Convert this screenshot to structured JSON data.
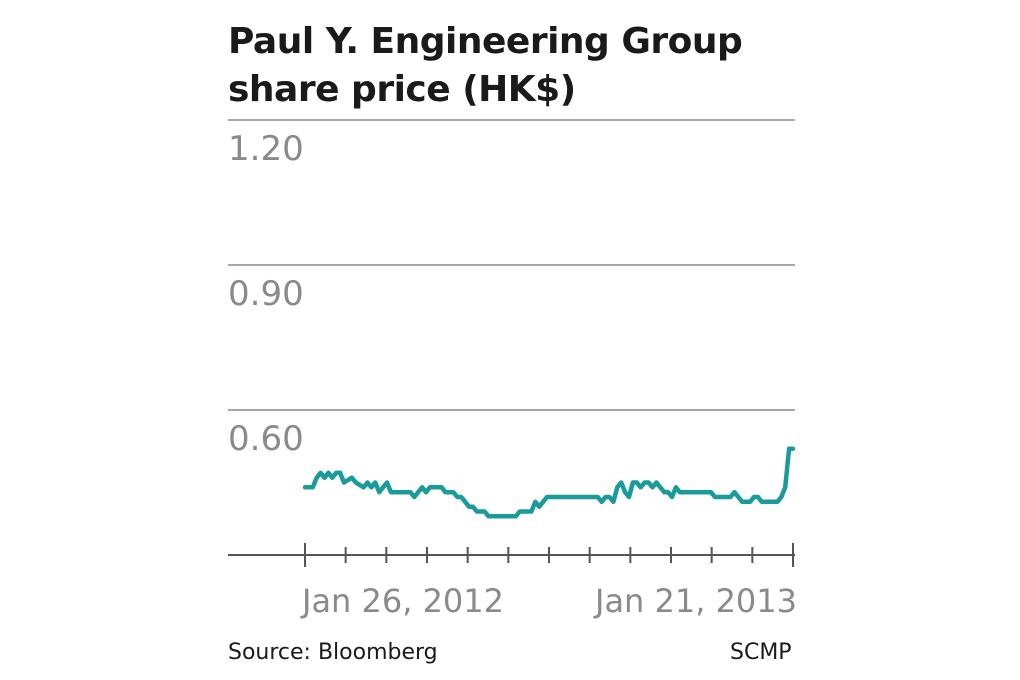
{
  "chart_data": {
    "type": "line",
    "title_line1": "Paul Y. Engineering Group",
    "title_line2": "share price (HK$)",
    "source": "Source: Bloomberg",
    "credit": "SCMP",
    "y_ticks": [
      "1.20",
      "0.90",
      "0.60"
    ],
    "y_tick_values": [
      1.2,
      0.9,
      0.6
    ],
    "ylim": [
      0.3,
      1.2
    ],
    "x_labels": [
      "Jan 26, 2012",
      "Jan 21, 2013"
    ],
    "x_label_indices": [
      0,
      250
    ],
    "x_count": 251,
    "grid": true,
    "line_color": "#1a9b9b",
    "series": [
      {
        "points": [
          [
            0,
            0.44
          ],
          [
            4,
            0.44
          ],
          [
            6,
            0.46
          ],
          [
            8,
            0.47
          ],
          [
            10,
            0.46
          ],
          [
            12,
            0.47
          ],
          [
            14,
            0.46
          ],
          [
            16,
            0.47
          ],
          [
            18,
            0.47
          ],
          [
            20,
            0.45
          ],
          [
            24,
            0.46
          ],
          [
            26,
            0.45
          ],
          [
            30,
            0.44
          ],
          [
            32,
            0.45
          ],
          [
            34,
            0.44
          ],
          [
            36,
            0.45
          ],
          [
            38,
            0.43
          ],
          [
            40,
            0.44
          ],
          [
            42,
            0.45
          ],
          [
            44,
            0.43
          ],
          [
            46,
            0.43
          ],
          [
            50,
            0.43
          ],
          [
            52,
            0.43
          ],
          [
            54,
            0.43
          ],
          [
            56,
            0.42
          ],
          [
            58,
            0.43
          ],
          [
            60,
            0.44
          ],
          [
            62,
            0.43
          ],
          [
            64,
            0.44
          ],
          [
            66,
            0.44
          ],
          [
            70,
            0.44
          ],
          [
            72,
            0.43
          ],
          [
            74,
            0.43
          ],
          [
            76,
            0.43
          ],
          [
            78,
            0.42
          ],
          [
            80,
            0.42
          ],
          [
            82,
            0.41
          ],
          [
            84,
            0.4
          ],
          [
            86,
            0.4
          ],
          [
            88,
            0.39
          ],
          [
            90,
            0.39
          ],
          [
            92,
            0.39
          ],
          [
            94,
            0.38
          ],
          [
            96,
            0.38
          ],
          [
            98,
            0.38
          ],
          [
            100,
            0.38
          ],
          [
            102,
            0.38
          ],
          [
            104,
            0.38
          ],
          [
            106,
            0.38
          ],
          [
            108,
            0.38
          ],
          [
            110,
            0.39
          ],
          [
            112,
            0.39
          ],
          [
            114,
            0.39
          ],
          [
            116,
            0.39
          ],
          [
            118,
            0.41
          ],
          [
            120,
            0.4
          ],
          [
            122,
            0.41
          ],
          [
            124,
            0.42
          ],
          [
            126,
            0.42
          ],
          [
            128,
            0.42
          ],
          [
            130,
            0.42
          ],
          [
            134,
            0.42
          ],
          [
            138,
            0.42
          ],
          [
            142,
            0.42
          ],
          [
            146,
            0.42
          ],
          [
            150,
            0.42
          ],
          [
            152,
            0.41
          ],
          [
            154,
            0.42
          ],
          [
            156,
            0.42
          ],
          [
            158,
            0.41
          ],
          [
            160,
            0.44
          ],
          [
            162,
            0.45
          ],
          [
            164,
            0.43
          ],
          [
            166,
            0.42
          ],
          [
            168,
            0.45
          ],
          [
            170,
            0.45
          ],
          [
            172,
            0.44
          ],
          [
            174,
            0.45
          ],
          [
            176,
            0.45
          ],
          [
            178,
            0.44
          ],
          [
            180,
            0.45
          ],
          [
            182,
            0.44
          ],
          [
            184,
            0.43
          ],
          [
            186,
            0.43
          ],
          [
            188,
            0.42
          ],
          [
            190,
            0.44
          ],
          [
            192,
            0.43
          ],
          [
            194,
            0.43
          ],
          [
            196,
            0.43
          ],
          [
            198,
            0.43
          ],
          [
            200,
            0.43
          ],
          [
            202,
            0.43
          ],
          [
            204,
            0.43
          ],
          [
            206,
            0.43
          ],
          [
            208,
            0.43
          ],
          [
            210,
            0.42
          ],
          [
            212,
            0.42
          ],
          [
            214,
            0.42
          ],
          [
            216,
            0.42
          ],
          [
            218,
            0.42
          ],
          [
            220,
            0.43
          ],
          [
            222,
            0.42
          ],
          [
            224,
            0.41
          ],
          [
            226,
            0.41
          ],
          [
            228,
            0.41
          ],
          [
            230,
            0.42
          ],
          [
            232,
            0.42
          ],
          [
            234,
            0.41
          ],
          [
            236,
            0.41
          ],
          [
            238,
            0.41
          ],
          [
            240,
            0.41
          ],
          [
            242,
            0.41
          ],
          [
            244,
            0.42
          ],
          [
            246,
            0.44
          ],
          [
            248,
            0.52
          ],
          [
            250,
            0.52
          ]
        ]
      }
    ]
  }
}
